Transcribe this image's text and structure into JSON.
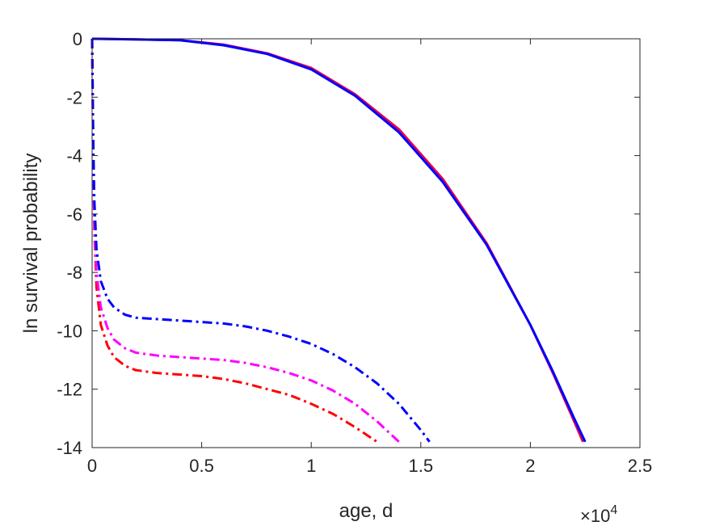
{
  "chart_data": {
    "type": "line",
    "title": "",
    "xlabel": "age, d",
    "ylabel": "ln survival probability",
    "x_exponent_label": "×10",
    "x_exponent_power": "4",
    "xlim": [
      0,
      25000
    ],
    "ylim": [
      -14,
      0
    ],
    "xticks": [
      0,
      5000,
      10000,
      15000,
      20000,
      25000
    ],
    "xtick_labels": [
      "0",
      "0.5",
      "1",
      "1.5",
      "2",
      "2.5"
    ],
    "yticks": [
      0,
      -2,
      -4,
      -6,
      -8,
      -10,
      -12,
      -14
    ],
    "ytick_labels": [
      "0",
      "-2",
      "-4",
      "-6",
      "-8",
      "-10",
      "-12",
      "-14"
    ],
    "grid": false,
    "series": [
      {
        "color": "#e8004f",
        "style": "solid",
        "x": [
          0,
          2000,
          4000,
          6000,
          8000,
          10000,
          12000,
          14000,
          16000,
          18000,
          20000,
          21000,
          22000,
          22400
        ],
        "y": [
          0,
          -0.02,
          -0.05,
          -0.2,
          -0.5,
          -1.0,
          -1.9,
          -3.1,
          -4.8,
          -7.0,
          -9.8,
          -11.4,
          -13.1,
          -13.8
        ]
      },
      {
        "color": "#0000ff",
        "style": "solid",
        "x": [
          0,
          2000,
          4000,
          6000,
          8000,
          10000,
          12000,
          14000,
          16000,
          18000,
          20000,
          21000,
          22000,
          22500
        ],
        "y": [
          0,
          -0.02,
          -0.05,
          -0.22,
          -0.52,
          -1.05,
          -1.95,
          -3.2,
          -4.9,
          -7.05,
          -9.8,
          -11.35,
          -13.0,
          -13.8
        ]
      },
      {
        "color": "#ff0000",
        "style": "dashdot",
        "x": [
          0,
          50,
          100,
          200,
          400,
          700,
          1000,
          1500,
          2000,
          3000,
          4000,
          5000,
          6000,
          7000,
          8000,
          9000,
          10000,
          11000,
          12000,
          13000
        ],
        "y": [
          0,
          -4,
          -6.5,
          -8.5,
          -9.8,
          -10.5,
          -10.9,
          -11.2,
          -11.35,
          -11.45,
          -11.5,
          -11.55,
          -11.65,
          -11.8,
          -12.0,
          -12.2,
          -12.5,
          -12.85,
          -13.3,
          -13.8
        ]
      },
      {
        "color": "#ff00ff",
        "style": "dashdot",
        "x": [
          0,
          50,
          100,
          200,
          400,
          700,
          1000,
          1500,
          2000,
          3000,
          4000,
          5000,
          6000,
          7000,
          8000,
          9000,
          10000,
          11000,
          12000,
          13000,
          14000
        ],
        "y": [
          0,
          -4,
          -6.2,
          -8.0,
          -9.2,
          -9.9,
          -10.3,
          -10.6,
          -10.75,
          -10.85,
          -10.9,
          -10.95,
          -11.0,
          -11.1,
          -11.25,
          -11.45,
          -11.7,
          -12.05,
          -12.5,
          -13.1,
          -13.8
        ]
      },
      {
        "color": "#0000ff",
        "style": "dashdot",
        "x": [
          0,
          50,
          100,
          200,
          400,
          700,
          1000,
          1500,
          2000,
          3000,
          4000,
          5000,
          6000,
          7000,
          8000,
          9000,
          10000,
          11000,
          12000,
          13000,
          14000,
          15000,
          15400
        ],
        "y": [
          0,
          -3.5,
          -5.5,
          -7.2,
          -8.3,
          -8.9,
          -9.2,
          -9.45,
          -9.55,
          -9.6,
          -9.65,
          -9.7,
          -9.75,
          -9.85,
          -10.0,
          -10.2,
          -10.45,
          -10.8,
          -11.25,
          -11.8,
          -12.5,
          -13.4,
          -13.8
        ]
      }
    ]
  }
}
